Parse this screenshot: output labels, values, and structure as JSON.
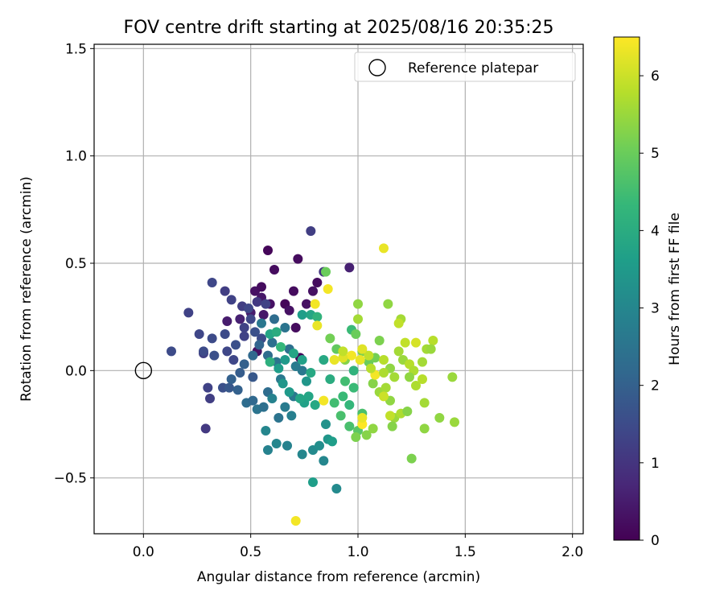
{
  "chart_data": {
    "type": "scatter",
    "title": "FOV centre drift starting at 2025/08/16 20:35:25",
    "xlabel": "Angular distance from reference (arcmin)",
    "ylabel": "Rotation from reference (arcmin)",
    "xlim": [
      -0.23,
      2.05
    ],
    "ylim": [
      -0.76,
      1.52
    ],
    "xticks": [
      0.0,
      0.5,
      1.0,
      1.5,
      2.0
    ],
    "xtick_labels": [
      "0.0",
      "0.5",
      "1.0",
      "1.5",
      "2.0"
    ],
    "yticks": [
      -0.5,
      0.0,
      0.5,
      1.0,
      1.5
    ],
    "ytick_labels": [
      "−0.5",
      "0.0",
      "0.5",
      "1.0",
      "1.5"
    ],
    "grid": true,
    "legend": {
      "position": "top-right",
      "entries": [
        {
          "label": "Reference platepar",
          "marker": "open-circle"
        }
      ]
    },
    "reference_point": {
      "x": 0.0,
      "y": 0.0
    },
    "colorbar": {
      "label": "Hours from first FF file",
      "colormap": "viridis",
      "range": [
        0,
        6.5
      ],
      "ticks": [
        0,
        1,
        2,
        3,
        4,
        5,
        6
      ],
      "tick_labels": [
        "0",
        "1",
        "2",
        "3",
        "4",
        "5",
        "6"
      ]
    },
    "points": [
      [
        0.58,
        0.56,
        0.1
      ],
      [
        0.61,
        0.47,
        0.2
      ],
      [
        0.72,
        0.52,
        0.2
      ],
      [
        0.52,
        0.37,
        0.3
      ],
      [
        0.55,
        0.39,
        0.2
      ],
      [
        0.66,
        0.31,
        0.1
      ],
      [
        0.7,
        0.37,
        0.2
      ],
      [
        0.79,
        0.37,
        0.3
      ],
      [
        0.81,
        0.41,
        0.2
      ],
      [
        0.76,
        0.31,
        0.3
      ],
      [
        0.55,
        0.34,
        0.4
      ],
      [
        0.59,
        0.31,
        0.3
      ],
      [
        0.5,
        0.27,
        0.5
      ],
      [
        0.56,
        0.26,
        0.4
      ],
      [
        0.68,
        0.28,
        0.3
      ],
      [
        0.71,
        0.2,
        0.2
      ],
      [
        0.73,
        0.06,
        0.1
      ],
      [
        0.53,
        0.09,
        0.3
      ],
      [
        0.45,
        0.24,
        0.6
      ],
      [
        0.39,
        0.23,
        0.5
      ],
      [
        0.84,
        0.46,
        1.0
      ],
      [
        0.78,
        0.65,
        1.2
      ],
      [
        0.96,
        0.48,
        0.6
      ],
      [
        0.32,
        0.41,
        1.4
      ],
      [
        0.38,
        0.37,
        1.2
      ],
      [
        0.41,
        0.33,
        1.3
      ],
      [
        0.46,
        0.3,
        1.2
      ],
      [
        0.49,
        0.29,
        1.4
      ],
      [
        0.53,
        0.32,
        1.1
      ],
      [
        0.57,
        0.31,
        1.3
      ],
      [
        0.21,
        0.27,
        1.3
      ],
      [
        0.26,
        0.17,
        1.4
      ],
      [
        0.32,
        0.15,
        1.5
      ],
      [
        0.38,
        0.17,
        1.5
      ],
      [
        0.28,
        0.08,
        1.2
      ],
      [
        0.28,
        0.09,
        1.5
      ],
      [
        0.33,
        0.07,
        1.6
      ],
      [
        0.39,
        0.09,
        1.4
      ],
      [
        0.13,
        0.09,
        1.5
      ],
      [
        0.47,
        0.2,
        1.3
      ],
      [
        0.5,
        0.24,
        1.4
      ],
      [
        0.52,
        0.18,
        1.6
      ],
      [
        0.55,
        0.15,
        1.5
      ],
      [
        0.47,
        0.16,
        1.3
      ],
      [
        0.43,
        0.12,
        1.6
      ],
      [
        0.42,
        0.05,
        1.4
      ],
      [
        0.3,
        -0.08,
        1.3
      ],
      [
        0.31,
        -0.13,
        1.2
      ],
      [
        0.29,
        -0.27,
        1.1
      ],
      [
        0.37,
        -0.08,
        1.6
      ],
      [
        0.4,
        -0.08,
        1.8
      ],
      [
        0.41,
        -0.04,
        2.0
      ],
      [
        0.45,
        -0.01,
        1.9
      ],
      [
        0.44,
        -0.09,
        2.0
      ],
      [
        0.51,
        -0.03,
        1.8
      ],
      [
        0.48,
        -0.15,
        2.3
      ],
      [
        0.51,
        -0.14,
        2.2
      ],
      [
        0.53,
        -0.18,
        2.5
      ],
      [
        0.56,
        -0.17,
        2.4
      ],
      [
        0.58,
        -0.1,
        2.3
      ],
      [
        0.47,
        0.03,
        2.0
      ],
      [
        0.51,
        0.07,
        2.2
      ],
      [
        0.54,
        0.12,
        2.1
      ],
      [
        0.58,
        0.07,
        2.3
      ],
      [
        0.62,
        0.04,
        2.5
      ],
      [
        0.64,
        -0.04,
        2.6
      ],
      [
        0.6,
        0.13,
        2.4
      ],
      [
        0.55,
        0.22,
        2.6
      ],
      [
        0.61,
        0.24,
        2.3
      ],
      [
        0.66,
        0.2,
        2.5
      ],
      [
        0.68,
        0.1,
        2.4
      ],
      [
        0.71,
        0.02,
        2.7
      ],
      [
        0.74,
        0.0,
        2.6
      ],
      [
        0.7,
        -0.12,
        2.6
      ],
      [
        0.63,
        -0.22,
        2.5
      ],
      [
        0.66,
        -0.17,
        2.7
      ],
      [
        0.69,
        -0.21,
        2.8
      ],
      [
        0.6,
        -0.13,
        2.9
      ],
      [
        0.57,
        -0.28,
        3.0
      ],
      [
        0.62,
        -0.34,
        3.0
      ],
      [
        0.58,
        -0.37,
        2.9
      ],
      [
        0.67,
        -0.35,
        2.9
      ],
      [
        0.74,
        -0.39,
        3.0
      ],
      [
        0.79,
        -0.37,
        3.1
      ],
      [
        0.82,
        -0.35,
        3.2
      ],
      [
        0.84,
        -0.42,
        3.0
      ],
      [
        0.86,
        -0.32,
        3.4
      ],
      [
        0.88,
        -0.33,
        3.6
      ],
      [
        0.85,
        -0.25,
        3.3
      ],
      [
        0.79,
        -0.52,
        3.6
      ],
      [
        0.9,
        -0.55,
        3.1
      ],
      [
        0.75,
        -0.15,
        3.7
      ],
      [
        0.77,
        -0.12,
        3.8
      ],
      [
        0.8,
        -0.16,
        3.9
      ],
      [
        0.73,
        -0.13,
        3.8
      ],
      [
        0.68,
        -0.1,
        3.5
      ],
      [
        0.65,
        -0.06,
        3.4
      ],
      [
        0.63,
        0.01,
        3.6
      ],
      [
        0.66,
        0.05,
        3.5
      ],
      [
        0.7,
        0.08,
        3.8
      ],
      [
        0.74,
        0.05,
        3.7
      ],
      [
        0.76,
        -0.05,
        3.4
      ],
      [
        0.78,
        -0.01,
        3.9
      ],
      [
        0.74,
        0.26,
        3.6
      ],
      [
        0.78,
        0.26,
        3.8
      ],
      [
        0.81,
        0.25,
        4.2
      ],
      [
        0.59,
        0.17,
        3.8
      ],
      [
        0.62,
        0.18,
        4.0
      ],
      [
        0.64,
        0.11,
        4.3
      ],
      [
        0.59,
        0.04,
        4.1
      ],
      [
        0.84,
        0.05,
        3.9
      ],
      [
        0.87,
        -0.04,
        4.0
      ],
      [
        0.89,
        -0.15,
        4.5
      ],
      [
        0.93,
        -0.12,
        4.4
      ],
      [
        0.92,
        -0.21,
        4.6
      ],
      [
        0.96,
        -0.16,
        4.3
      ],
      [
        0.98,
        -0.08,
        4.4
      ],
      [
        0.94,
        -0.05,
        4.5
      ],
      [
        0.98,
        0.0,
        4.2
      ],
      [
        0.96,
        -0.26,
        4.6
      ],
      [
        1.0,
        -0.28,
        4.8
      ],
      [
        1.02,
        -0.2,
        4.6
      ],
      [
        0.99,
        -0.31,
        5.2
      ],
      [
        1.04,
        -0.3,
        5.3
      ],
      [
        1.07,
        -0.27,
        5.4
      ],
      [
        0.87,
        0.15,
        5.1
      ],
      [
        0.9,
        0.1,
        4.9
      ],
      [
        0.94,
        0.05,
        5.3
      ],
      [
        0.97,
        0.19,
        4.4
      ],
      [
        0.99,
        0.17,
        5.0
      ],
      [
        1.0,
        0.24,
        5.6
      ],
      [
        1.0,
        0.31,
        5.4
      ],
      [
        0.85,
        0.46,
        5.0
      ],
      [
        1.02,
        0.09,
        5.2
      ],
      [
        1.05,
        0.04,
        5.0
      ],
      [
        1.08,
        0.06,
        5.1
      ],
      [
        1.07,
        -0.06,
        5.3
      ],
      [
        1.1,
        -0.1,
        5.5
      ],
      [
        1.13,
        -0.08,
        5.6
      ],
      [
        1.15,
        -0.14,
        5.4
      ],
      [
        1.12,
        -0.12,
        6.0
      ],
      [
        1.17,
        -0.22,
        5.5
      ],
      [
        1.16,
        -0.26,
        5.3
      ],
      [
        1.2,
        -0.2,
        5.7
      ],
      [
        1.23,
        -0.19,
        5.3
      ],
      [
        1.25,
        -0.41,
        5.2
      ],
      [
        1.1,
        0.14,
        5.2
      ],
      [
        1.12,
        0.05,
        5.8
      ],
      [
        1.15,
        0.01,
        5.4
      ],
      [
        1.17,
        -0.03,
        5.6
      ],
      [
        1.19,
        0.09,
        5.6
      ],
      [
        1.21,
        0.05,
        5.5
      ],
      [
        1.24,
        0.03,
        5.8
      ],
      [
        1.26,
        0.0,
        5.7
      ],
      [
        1.24,
        -0.03,
        5.4
      ],
      [
        1.27,
        -0.07,
        5.7
      ],
      [
        1.3,
        -0.04,
        5.8
      ],
      [
        1.31,
        -0.15,
        5.6
      ],
      [
        1.31,
        -0.27,
        5.4
      ],
      [
        1.38,
        -0.22,
        5.4
      ],
      [
        1.44,
        -0.03,
        5.5
      ],
      [
        1.45,
        -0.24,
        5.5
      ],
      [
        1.32,
        0.1,
        5.6
      ],
      [
        1.35,
        0.14,
        5.8
      ],
      [
        1.34,
        0.1,
        5.5
      ],
      [
        1.3,
        0.04,
        5.6
      ],
      [
        1.27,
        0.13,
        6.1
      ],
      [
        1.22,
        0.13,
        5.9
      ],
      [
        1.2,
        0.24,
        5.6
      ],
      [
        1.19,
        0.22,
        5.9
      ],
      [
        1.14,
        0.31,
        5.4
      ],
      [
        1.12,
        0.57,
        6.3
      ],
      [
        1.05,
        0.07,
        5.9
      ],
      [
        1.01,
        0.05,
        6.3
      ],
      [
        0.97,
        0.07,
        6.4
      ],
      [
        0.93,
        0.06,
        6.2
      ],
      [
        0.89,
        0.05,
        6.3
      ],
      [
        0.86,
        0.38,
        6.4
      ],
      [
        0.8,
        0.31,
        6.4
      ],
      [
        0.81,
        0.21,
        6.3
      ],
      [
        0.84,
        -0.14,
        6.4
      ],
      [
        0.71,
        -0.7,
        6.4
      ],
      [
        1.02,
        -0.25,
        6.5
      ],
      [
        1.02,
        -0.22,
        6.3
      ],
      [
        1.15,
        -0.21,
        5.9
      ],
      [
        1.08,
        -0.02,
        6.4
      ],
      [
        1.02,
        0.1,
        6.2
      ],
      [
        1.06,
        0.01,
        5.8
      ],
      [
        1.12,
        -0.01,
        5.7
      ],
      [
        0.93,
        0.09,
        5.9
      ]
    ]
  }
}
